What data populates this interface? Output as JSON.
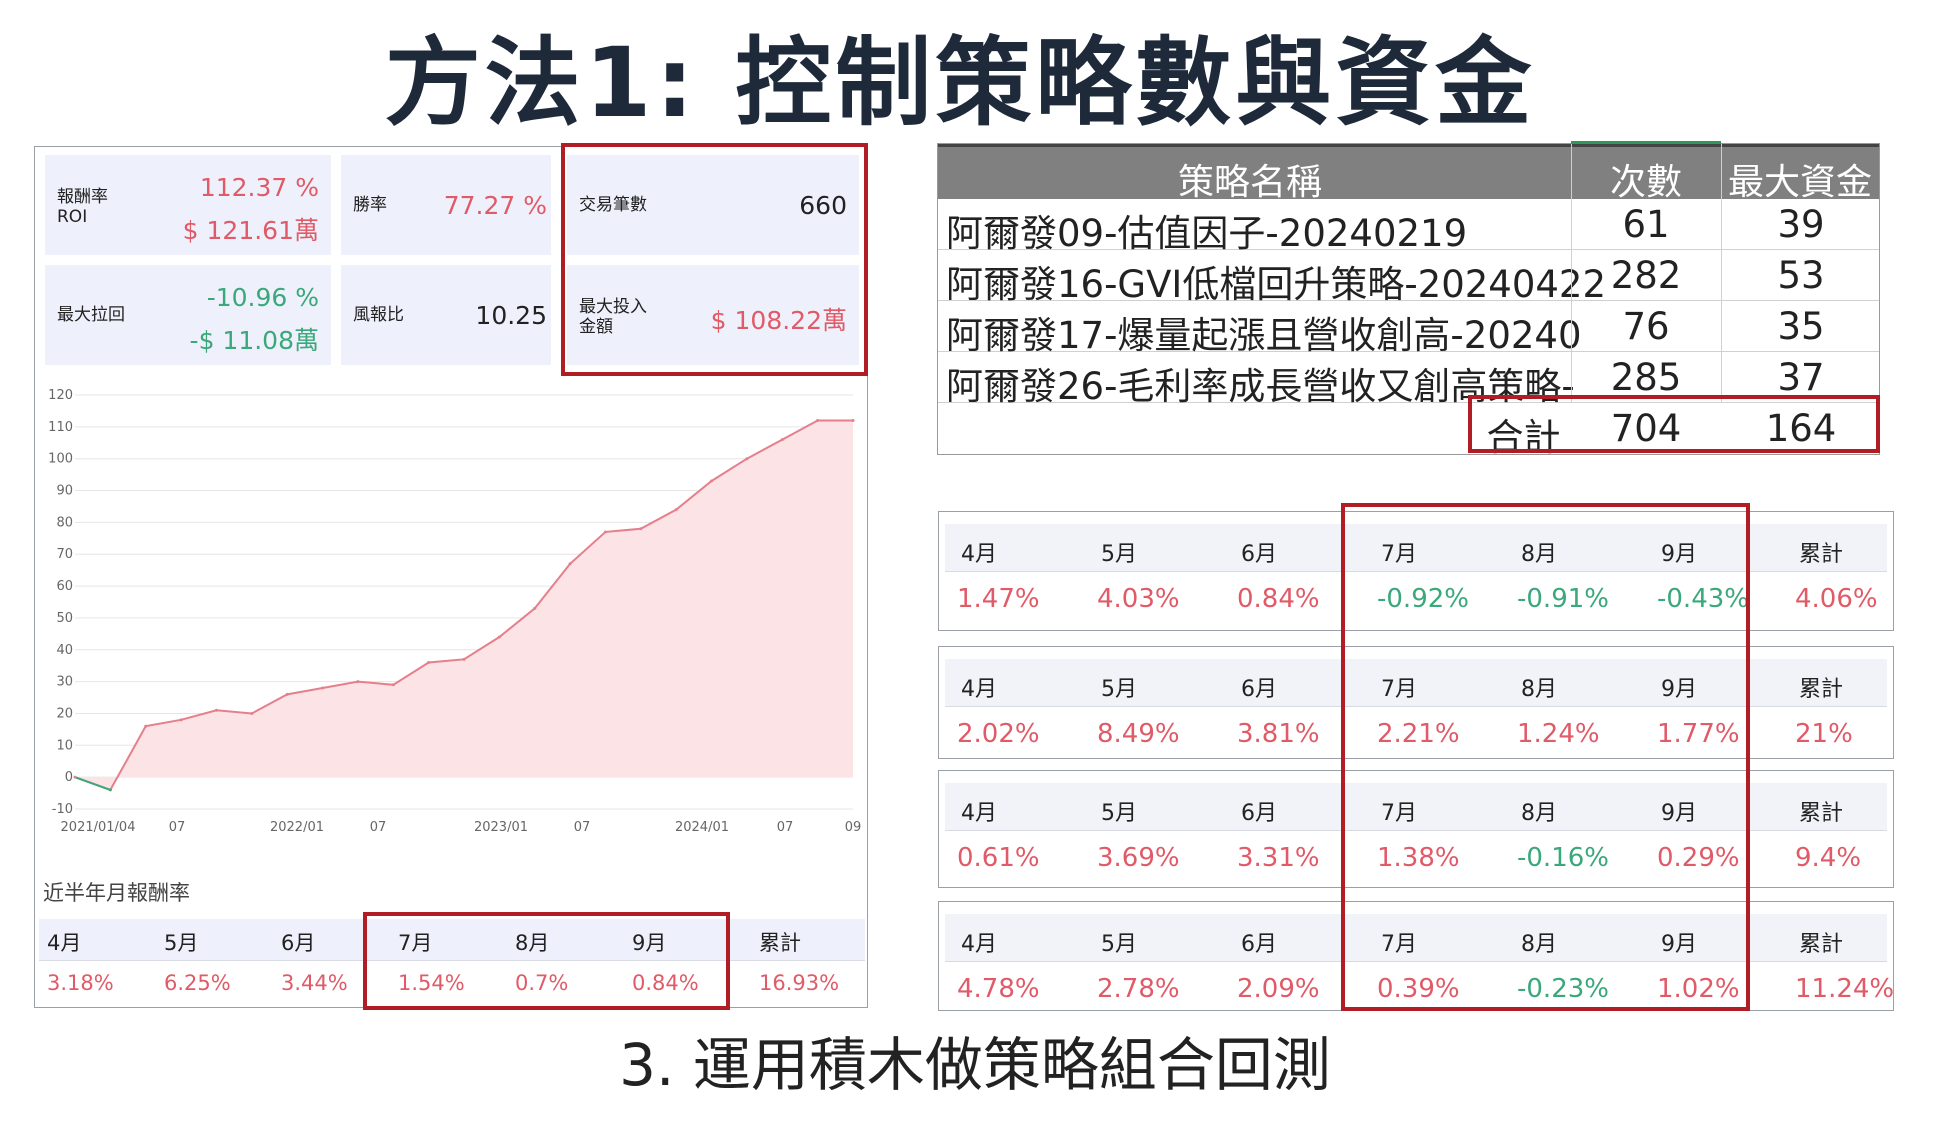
{
  "title": "方法1: 控制策略數與資金",
  "caption": "3. 運用積木做策略組合回測",
  "stats": {
    "roi_label_line1": "報酬率",
    "roi_label_line2": "ROI",
    "roi_pct": "112.37 %",
    "roi_amount": "$ 121.61萬",
    "win_label": "勝率",
    "win_value": "77.27 %",
    "trades_label": "交易筆數",
    "trades_value": "660",
    "mdd_label": "最大拉回",
    "mdd_pct": "-10.96 %",
    "mdd_amount": "-$ 11.08萬",
    "rr_label": "風報比",
    "rr_value": "10.25",
    "maxinv_label_line1": "最大投入",
    "maxinv_label_line2": "金額",
    "maxinv_value": "$ 108.22萬"
  },
  "chart_data": {
    "type": "area",
    "ylim": [
      -10,
      120
    ],
    "yticks": [
      "120",
      "110",
      "100",
      "90",
      "80",
      "70",
      "60",
      "50",
      "40",
      "30",
      "20",
      "10",
      "0",
      "-10"
    ],
    "xticks": [
      "2021/01/04",
      "07",
      "2022/01",
      "07",
      "2023/01",
      "07",
      "2024/01",
      "07",
      "09"
    ],
    "x": [
      "2021-01",
      "2021-03",
      "2021-05",
      "2021-07",
      "2021-09",
      "2021-11",
      "2022-01",
      "2022-03",
      "2022-05",
      "2022-07",
      "2022-09",
      "2022-11",
      "2023-01",
      "2023-03",
      "2023-05",
      "2023-07",
      "2023-09",
      "2023-11",
      "2024-01",
      "2024-03",
      "2024-05",
      "2024-07",
      "2024-09"
    ],
    "values": [
      0,
      -4,
      16,
      18,
      21,
      20,
      26,
      28,
      30,
      29,
      36,
      37,
      44,
      53,
      67,
      77,
      78,
      84,
      93,
      100,
      106,
      112,
      112
    ],
    "colors": {
      "line": "#e57f8c",
      "fill": "#fbe3e6",
      "negative": "#3aa87b"
    }
  },
  "half_year": {
    "title": "近半年月報酬率",
    "months": [
      "4月",
      "5月",
      "6月",
      "7月",
      "8月",
      "9月",
      "累計"
    ],
    "values": [
      "3.18%",
      "6.25%",
      "3.44%",
      "1.54%",
      "0.7%",
      "0.84%",
      "16.93%"
    ]
  },
  "strategy_table": {
    "headers": [
      "策略名稱",
      "次數",
      "最大資金"
    ],
    "rows": [
      {
        "name": "阿爾發09-估值因子-20240219",
        "count": "61",
        "capital": "39"
      },
      {
        "name": "阿爾發16-GVI低檔回升策略-20240422",
        "count": "282",
        "capital": "53"
      },
      {
        "name": "阿爾發17-爆量起漲且營收創高-20240",
        "count": "76",
        "capital": "35"
      },
      {
        "name": "阿爾發26-毛利率成長營收又創高策略-",
        "count": "285",
        "capital": "37"
      }
    ],
    "total_label": "合計",
    "total_count": "704",
    "total_capital": "164"
  },
  "monthly_panels": [
    {
      "months": [
        "4月",
        "5月",
        "6月",
        "7月",
        "8月",
        "9月",
        "累計"
      ],
      "values": [
        "1.47%",
        "4.03%",
        "0.84%",
        "-0.92%",
        "-0.91%",
        "-0.43%",
        "4.06%"
      ]
    },
    {
      "months": [
        "4月",
        "5月",
        "6月",
        "7月",
        "8月",
        "9月",
        "累計"
      ],
      "values": [
        "2.02%",
        "8.49%",
        "3.81%",
        "2.21%",
        "1.24%",
        "1.77%",
        "21%"
      ]
    },
    {
      "months": [
        "4月",
        "5月",
        "6月",
        "7月",
        "8月",
        "9月",
        "累計"
      ],
      "values": [
        "0.61%",
        "3.69%",
        "3.31%",
        "1.38%",
        "-0.16%",
        "0.29%",
        "9.4%"
      ]
    },
    {
      "months": [
        "4月",
        "5月",
        "6月",
        "7月",
        "8月",
        "9月",
        "累計"
      ],
      "values": [
        "4.78%",
        "2.78%",
        "2.09%",
        "0.39%",
        "-0.23%",
        "1.02%",
        "11.24%"
      ]
    }
  ]
}
